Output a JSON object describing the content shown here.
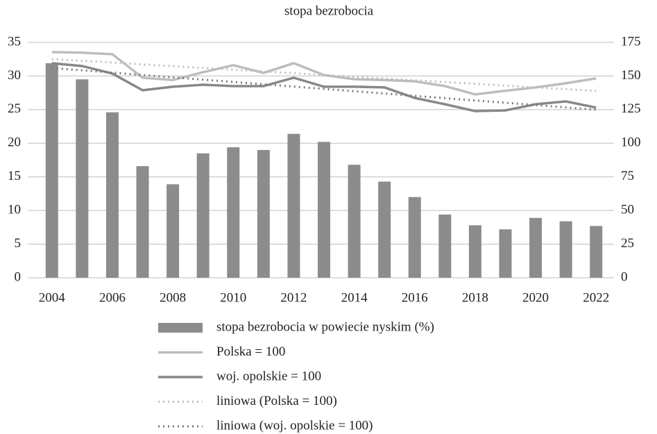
{
  "chart_data": {
    "type": "bar",
    "title": "stopa bezrobocia",
    "categories": [
      "2004",
      null,
      "2006",
      null,
      "2008",
      null,
      "2010",
      null,
      "2012",
      null,
      "2014",
      null,
      "2016",
      null,
      "2018",
      null,
      "2020",
      null,
      "2022"
    ],
    "ylim": [
      0,
      35
    ],
    "yticks": [
      0,
      5,
      10,
      15,
      20,
      25,
      30,
      35
    ],
    "y2lim": [
      0,
      175
    ],
    "y2ticks": [
      0,
      25,
      50,
      75,
      100,
      125,
      150,
      175
    ],
    "grid": true,
    "legend": "bottom",
    "series": [
      {
        "name": "stopa bezrobocia w powiecie nyskim (%)",
        "type": "bar",
        "color": "#8c8c8c",
        "values": [
          31.9,
          29.5,
          24.6,
          16.6,
          13.9,
          18.5,
          19.4,
          19.0,
          21.4,
          20.2,
          16.8,
          14.3,
          12.0,
          9.4,
          7.8,
          7.2,
          8.9,
          8.4,
          7.7
        ]
      },
      {
        "name": "Polska = 100",
        "type": "line",
        "axis": "y2",
        "color": "#bdbdbd",
        "values": [
          167.8,
          167.3,
          166.2,
          148.7,
          147.0,
          152.8,
          158.0,
          152.3,
          159.5,
          150.7,
          147.6,
          147.0,
          146.0,
          142.5,
          136.3,
          139.0,
          141.5,
          144.6,
          148.2
        ]
      },
      {
        "name": "woj. opolskie = 100",
        "type": "line",
        "axis": "y2",
        "color": "#888888",
        "values": [
          159.5,
          157.4,
          151.8,
          139.4,
          142.0,
          143.5,
          142.5,
          142.5,
          148.7,
          142.0,
          142.0,
          141.5,
          133.7,
          129.0,
          123.9,
          124.4,
          129.0,
          131.1,
          126.5
        ]
      },
      {
        "name": "liniowa (Polska = 100)",
        "type": "line",
        "dash": "dotted",
        "axis": "y2",
        "color": "#bdbdbd",
        "values": [
          162.6,
          161.3,
          160.0,
          158.6,
          157.3,
          156.0,
          154.7,
          153.4,
          152.1,
          150.7,
          149.4,
          148.1,
          146.8,
          145.5,
          144.2,
          142.8,
          141.5,
          140.2,
          138.9
        ]
      },
      {
        "name": "liniowa (woj. opolskie = 100)",
        "type": "line",
        "dash": "dotted",
        "axis": "y2",
        "color": "#777777",
        "values": [
          155.9,
          154.2,
          152.5,
          150.7,
          149.0,
          147.3,
          145.6,
          143.8,
          142.1,
          140.4,
          138.7,
          137.0,
          135.2,
          133.5,
          131.8,
          130.1,
          128.4,
          126.6,
          124.9
        ]
      }
    ]
  }
}
